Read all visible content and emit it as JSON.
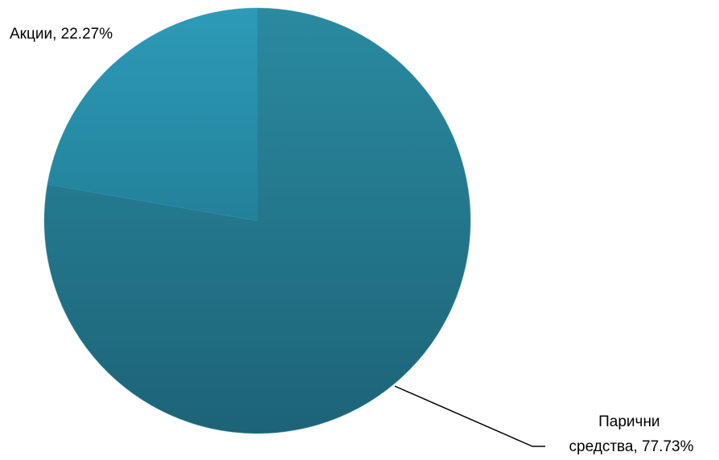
{
  "chart_data": {
    "type": "pie",
    "title": "",
    "slices": [
      {
        "label": "Парични средства",
        "value": 77.73,
        "color": "#237a8e",
        "label_lines": [
          "Парични",
          "средства, 77.73%"
        ]
      },
      {
        "label": "Акции",
        "value": 22.27,
        "color": "#2790a8",
        "label_lines": [
          "Акции, 22.27%"
        ]
      }
    ],
    "start_angle_deg": 0,
    "direction": "clockwise",
    "legend": "none",
    "data_labels": "outside with leader line"
  }
}
